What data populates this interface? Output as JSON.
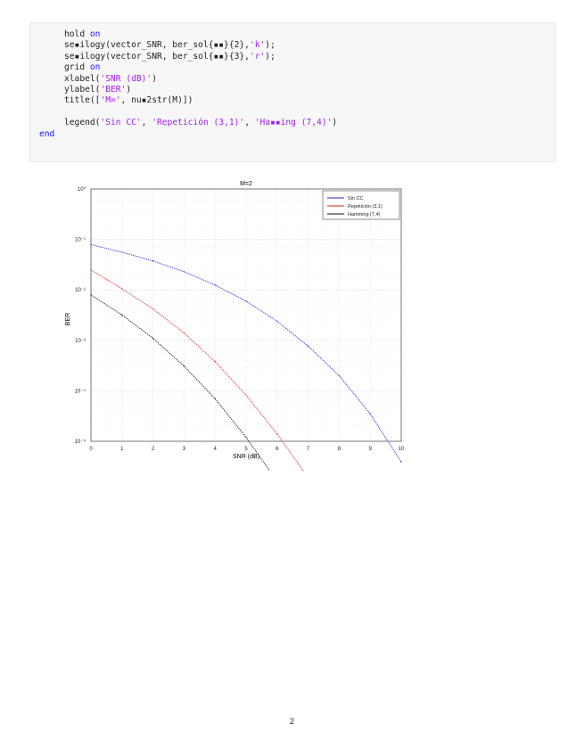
{
  "code": {
    "lines": [
      {
        "indent": 2,
        "tokens": [
          {
            "t": "hold ",
            "c": "plain"
          },
          {
            "t": "on",
            "c": "kw"
          }
        ]
      },
      {
        "indent": 2,
        "tokens": [
          {
            "t": "se▪ilogy(vector_SNR, ber_sol{▪▪}{2},",
            "c": "plain"
          },
          {
            "t": "'k'",
            "c": "str"
          },
          {
            "t": ");",
            "c": "plain"
          }
        ]
      },
      {
        "indent": 2,
        "tokens": [
          {
            "t": "se▪ilogy(vector_SNR, ber_sol{▪▪}{3},",
            "c": "plain"
          },
          {
            "t": "'r'",
            "c": "str"
          },
          {
            "t": ");",
            "c": "plain"
          }
        ]
      },
      {
        "indent": 2,
        "tokens": [
          {
            "t": "grid ",
            "c": "plain"
          },
          {
            "t": "on",
            "c": "kw"
          }
        ]
      },
      {
        "indent": 2,
        "tokens": [
          {
            "t": "xlabel(",
            "c": "plain"
          },
          {
            "t": "'SNR (dB)'",
            "c": "str"
          },
          {
            "t": ")",
            "c": "plain"
          }
        ]
      },
      {
        "indent": 2,
        "tokens": [
          {
            "t": "ylabel(",
            "c": "plain"
          },
          {
            "t": "'BER'",
            "c": "str"
          },
          {
            "t": ")",
            "c": "plain"
          }
        ]
      },
      {
        "indent": 2,
        "tokens": [
          {
            "t": "title([",
            "c": "plain"
          },
          {
            "t": "'M='",
            "c": "str"
          },
          {
            "t": ", nu▪2str(M)])",
            "c": "plain"
          }
        ]
      },
      {
        "indent": 2,
        "tokens": []
      },
      {
        "indent": 2,
        "tokens": [
          {
            "t": "legend(",
            "c": "plain"
          },
          {
            "t": "'Sin CC'",
            "c": "str"
          },
          {
            "t": ", ",
            "c": "plain"
          },
          {
            "t": "'Repetición (3,1)'",
            "c": "str"
          },
          {
            "t": ", ",
            "c": "plain"
          },
          {
            "t": "'Ha▪▪ing (7,4)'",
            "c": "str"
          },
          {
            "t": ")",
            "c": "plain"
          }
        ]
      },
      {
        "indent": 0,
        "tokens": [
          {
            "t": "end",
            "c": "kw"
          }
        ]
      }
    ]
  },
  "chart_data": {
    "type": "line",
    "title": "M=2",
    "xlabel": "SNR (dB)",
    "ylabel": "BER",
    "x_ticks": [
      "0",
      "1",
      "2",
      "3",
      "4",
      "5",
      "6",
      "7",
      "8",
      "9",
      "10"
    ],
    "y_ticks": [
      "10⁰",
      "10⁻¹",
      "10⁻²",
      "10⁻³",
      "10⁻⁴",
      "10⁻⁵"
    ],
    "xlim": [
      0,
      10
    ],
    "ylim": [
      1e-05,
      1
    ],
    "yscale": "log",
    "grid": true,
    "legend_position": "top-right",
    "series": [
      {
        "name": "Sin CC",
        "color": "#2222dd",
        "x": [
          0,
          1,
          2,
          3,
          4,
          5,
          6,
          7,
          8,
          9,
          10
        ],
        "y": [
          0.079,
          0.056,
          0.0375,
          0.023,
          0.0125,
          0.006,
          0.0024,
          0.00077,
          0.0002,
          3.5e-05,
          3.9e-06
        ]
      },
      {
        "name": "Repetición (3,1)",
        "color": "#dd2222",
        "x": [
          0,
          1,
          2,
          3,
          4,
          5,
          6,
          7
        ],
        "y": [
          0.025,
          0.0105,
          0.0042,
          0.0014,
          0.00038,
          8.2e-05,
          1.4e-05,
          1.9e-06
        ]
      },
      {
        "name": "Hamming (7,4)",
        "color": "#111111",
        "x": [
          0,
          1,
          2,
          3,
          4,
          5,
          6
        ],
        "y": [
          0.008,
          0.0032,
          0.0011,
          0.00031,
          7e-05,
          1.2e-05,
          1.6e-06
        ]
      }
    ]
  },
  "page_number": "2"
}
